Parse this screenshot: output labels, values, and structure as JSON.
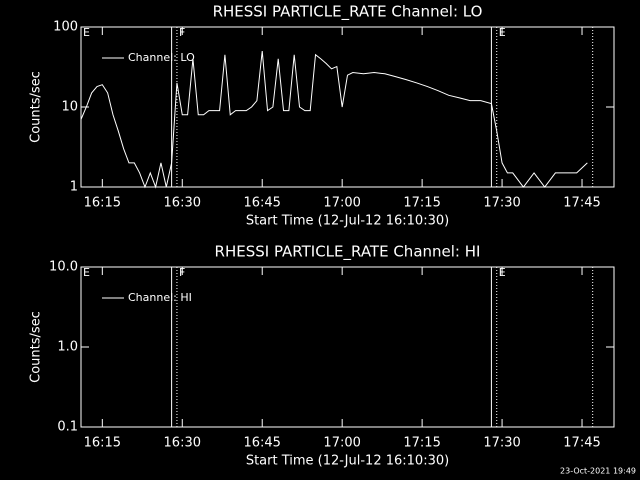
{
  "chart_data": [
    {
      "type": "line",
      "title": "RHESSI PARTICLE_RATE Channel: LO",
      "y_label": "Counts/sec",
      "x_label": "Start Time (12-Jul-12 16:10:30)",
      "log_y": true,
      "xlim": [
        "16:11",
        "17:51"
      ],
      "ylim": [
        1,
        100
      ],
      "yticks": [
        1,
        10,
        100
      ],
      "xticks": [
        "16:15",
        "16:30",
        "16:45",
        "17:00",
        "17:15",
        "17:30",
        "17:45"
      ],
      "flags": [
        {
          "label": "E",
          "x": "16:11"
        },
        {
          "label": "F",
          "x": "16:29"
        },
        {
          "label": "E",
          "x": "17:29"
        }
      ],
      "solid_lines": [
        "16:28",
        "17:28"
      ],
      "dotted_lines": [
        "16:29",
        "17:29",
        "17:47"
      ],
      "x": [
        "16:11",
        "16:12",
        "16:13",
        "16:14",
        "16:15",
        "16:16",
        "16:17",
        "16:18",
        "16:19",
        "16:20",
        "16:21",
        "16:22",
        "16:23",
        "16:24",
        "16:25",
        "16:26",
        "16:27",
        "16:28",
        "16:29",
        "16:30",
        "16:31",
        "16:32",
        "16:33",
        "16:34",
        "16:35",
        "16:36",
        "16:37",
        "16:38",
        "16:39",
        "16:40",
        "16:41",
        "16:42",
        "16:43",
        "16:44",
        "16:45",
        "16:46",
        "16:47",
        "16:48",
        "16:49",
        "16:50",
        "16:51",
        "16:52",
        "16:53",
        "16:54",
        "16:55",
        "16:56",
        "16:57",
        "16:58",
        "16:59",
        "17:00",
        "17:01",
        "17:02",
        "17:04",
        "17:06",
        "17:08",
        "17:10",
        "17:12",
        "17:14",
        "17:16",
        "17:18",
        "17:20",
        "17:22",
        "17:24",
        "17:26",
        "17:28",
        "17:29",
        "17:30",
        "17:31",
        "17:32",
        "17:34",
        "17:36",
        "17:38",
        "17:40",
        "17:42",
        "17:44",
        "17:46"
      ],
      "series": [
        {
          "name": "Channel: LO",
          "color": "#ffffff",
          "values": [
            7,
            10,
            15,
            18,
            19,
            15,
            8,
            5,
            3,
            2,
            2,
            1.5,
            1,
            1.5,
            1,
            2,
            1,
            2,
            20,
            8,
            8,
            40,
            8,
            8,
            9,
            9,
            9,
            45,
            8,
            9,
            9,
            9,
            10,
            12,
            50,
            9,
            10,
            40,
            9,
            9,
            45,
            10,
            9,
            9,
            45,
            40,
            35,
            30,
            32,
            10,
            25,
            27,
            26,
            27,
            26,
            24,
            22,
            20,
            18,
            16,
            14,
            13,
            12,
            12,
            11,
            5,
            2,
            1.5,
            1.5,
            1,
            1.5,
            1,
            1.5,
            1.5,
            1.5,
            2
          ]
        }
      ]
    },
    {
      "type": "line",
      "title": "RHESSI PARTICLE_RATE Channel: HI",
      "y_label": "Counts/sec",
      "x_label": "Start Time (12-Jul-12 16:10:30)",
      "log_y": true,
      "xlim": [
        "16:11",
        "17:51"
      ],
      "ylim": [
        0.1,
        10
      ],
      "yticks": [
        0.1,
        {
          "value": 1,
          "label": "1.0"
        },
        {
          "value": 10,
          "label": "10.0"
        }
      ],
      "xticks": [
        "16:15",
        "16:30",
        "16:45",
        "17:00",
        "17:15",
        "17:30",
        "17:45"
      ],
      "flags": [
        {
          "label": "E",
          "x": "16:11"
        },
        {
          "label": "F",
          "x": "16:29"
        },
        {
          "label": "E",
          "x": "17:29"
        }
      ],
      "solid_lines": [
        "16:28",
        "17:28"
      ],
      "dotted_lines": [
        "16:29",
        "17:29",
        "17:47"
      ],
      "x": [],
      "series": [
        {
          "name": "Channel: HI",
          "color": "#ffffff",
          "values": []
        }
      ]
    }
  ],
  "footer": "23-Oct-2021 19:49"
}
